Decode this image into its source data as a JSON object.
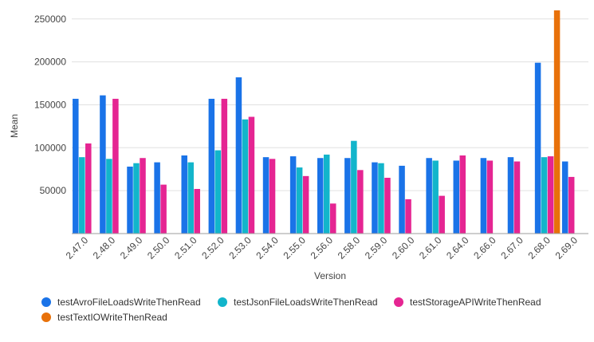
{
  "chart_data": {
    "type": "bar",
    "title": "",
    "xlabel": "Version",
    "ylabel": "Mean",
    "ylim": [
      0,
      260000
    ],
    "yticks": [
      50000,
      100000,
      150000,
      200000,
      250000
    ],
    "ytick_labels": [
      "50000",
      "100000",
      "150000",
      "200000",
      "250000"
    ],
    "grid": true,
    "legend_position": "bottom",
    "categories": [
      "2.47.0",
      "2.48.0",
      "2.49.0",
      "2.50.0",
      "2.51.0",
      "2.52.0",
      "2.53.0",
      "2.54.0",
      "2.55.0",
      "2.56.0",
      "2.58.0",
      "2.59.0",
      "2.60.0",
      "2.61.0",
      "2.64.0",
      "2.66.0",
      "2.67.0",
      "2.68.0",
      "2.69.0"
    ],
    "series": [
      {
        "name": "testAvroFileLoadsWriteThenRead",
        "color": "#1a73e8",
        "values": [
          157000,
          161000,
          78000,
          83000,
          91000,
          157000,
          182000,
          89000,
          90000,
          88000,
          88000,
          83000,
          79000,
          88000,
          85000,
          88000,
          89000,
          199000,
          84000
        ]
      },
      {
        "name": "testJsonFileLoadsWriteThenRead",
        "color": "#12b5cb",
        "values": [
          89000,
          87000,
          82000,
          null,
          83000,
          97000,
          133000,
          null,
          77000,
          92000,
          108000,
          82000,
          null,
          85000,
          null,
          null,
          null,
          89000,
          null
        ]
      },
      {
        "name": "testStorageAPIWriteThenRead",
        "color": "#e52592",
        "values": [
          105000,
          157000,
          88000,
          57000,
          52000,
          157000,
          136000,
          87000,
          67000,
          35000,
          74000,
          65000,
          40000,
          44000,
          91000,
          85000,
          84000,
          90000,
          66000
        ]
      },
      {
        "name": "testTextIOWriteThenRead",
        "color": "#e8710a",
        "values": [
          null,
          null,
          null,
          null,
          null,
          null,
          null,
          null,
          null,
          null,
          null,
          null,
          null,
          null,
          null,
          null,
          null,
          260000,
          null
        ]
      }
    ]
  }
}
